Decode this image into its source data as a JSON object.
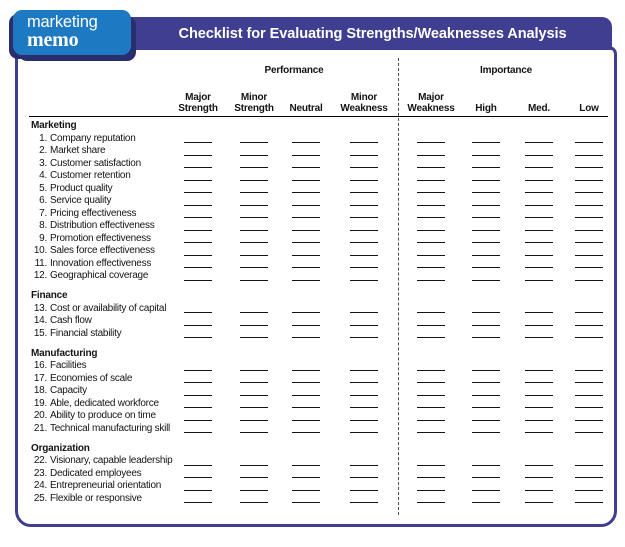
{
  "badge": {
    "word1": "marketing",
    "word2": "memo"
  },
  "header": {
    "title": "Checklist for Evaluating Strengths/Weaknesses Analysis"
  },
  "colors": {
    "header_navy": "#403e90",
    "badge_blue": "#1d79c1",
    "badge_shadow": "#2a2e6f",
    "ink": "#141414"
  },
  "table": {
    "group_headers": {
      "performance": "Performance",
      "importance": "Importance"
    },
    "columns": [
      {
        "top": "Major",
        "bottom": "Strength"
      },
      {
        "top": "Minor",
        "bottom": "Strength"
      },
      {
        "top": "",
        "bottom": "Neutral"
      },
      {
        "top": "Minor",
        "bottom": "Weakness"
      },
      {
        "top": "Major",
        "bottom": "Weakness"
      },
      {
        "top": "",
        "bottom": "High"
      },
      {
        "top": "",
        "bottom": "Med."
      },
      {
        "top": "",
        "bottom": "Low"
      }
    ],
    "blanks_per_row": 8,
    "sections": [
      {
        "name": "Marketing",
        "items": [
          {
            "num": "1.",
            "label": "Company reputation"
          },
          {
            "num": "2.",
            "label": "Market share"
          },
          {
            "num": "3.",
            "label": "Customer satisfaction"
          },
          {
            "num": "4.",
            "label": "Customer retention"
          },
          {
            "num": "5.",
            "label": "Product quality"
          },
          {
            "num": "6.",
            "label": "Service quality"
          },
          {
            "num": "7.",
            "label": "Pricing effectiveness"
          },
          {
            "num": "8.",
            "label": "Distribution effectiveness"
          },
          {
            "num": "9.",
            "label": "Promotion effectiveness"
          },
          {
            "num": "10.",
            "label": "Sales force effectiveness"
          },
          {
            "num": "11.",
            "label": "Innovation effectiveness"
          },
          {
            "num": "12.",
            "label": "Geographical coverage"
          }
        ]
      },
      {
        "name": "Finance",
        "items": [
          {
            "num": "13.",
            "label": "Cost or availability of capital"
          },
          {
            "num": "14.",
            "label": "Cash flow"
          },
          {
            "num": "15.",
            "label": "Financial stability"
          }
        ]
      },
      {
        "name": "Manufacturing",
        "items": [
          {
            "num": "16.",
            "label": "Facilities"
          },
          {
            "num": "17.",
            "label": "Economies of scale"
          },
          {
            "num": "18.",
            "label": "Capacity"
          },
          {
            "num": "19.",
            "label": "Able, dedicated workforce"
          },
          {
            "num": "20.",
            "label": "Ability to produce on time"
          },
          {
            "num": "21.",
            "label": "Technical manufacturing skill"
          }
        ]
      },
      {
        "name": "Organization",
        "items": [
          {
            "num": "22.",
            "label": "Visionary, capable leadership"
          },
          {
            "num": "23.",
            "label": "Dedicated employees"
          },
          {
            "num": "24.",
            "label": "Entrepreneurial orientation"
          },
          {
            "num": "25.",
            "label": "Flexible or responsive"
          }
        ]
      }
    ]
  }
}
